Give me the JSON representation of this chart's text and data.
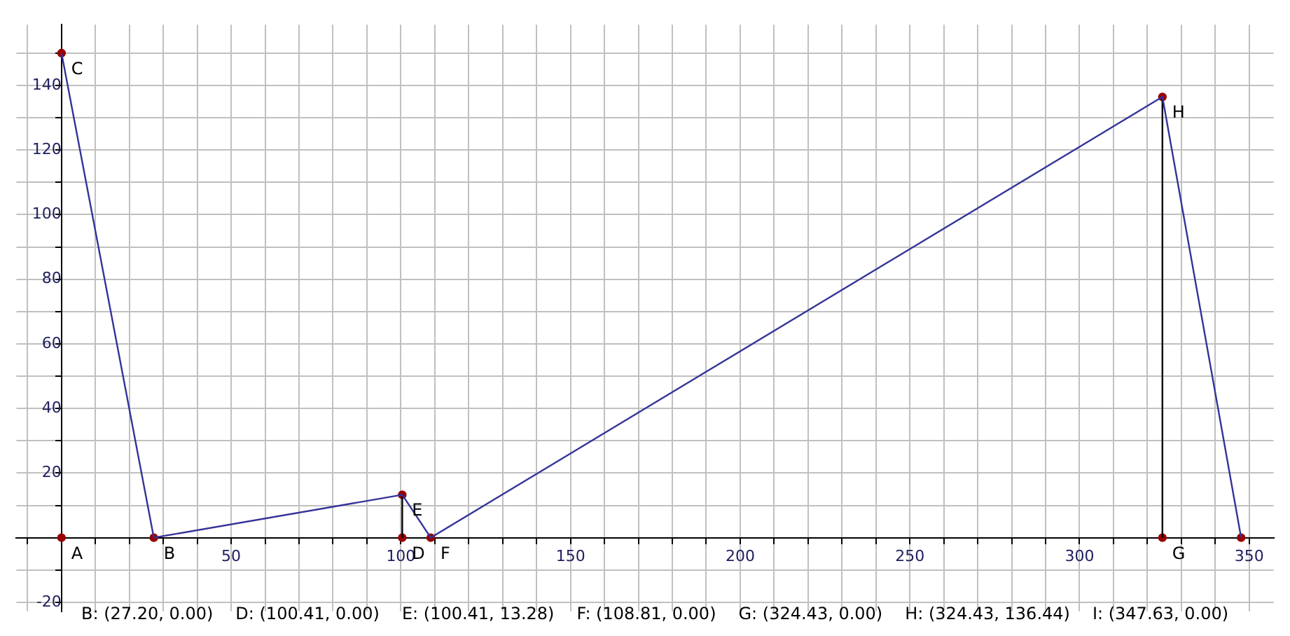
{
  "chart_data": {
    "type": "line",
    "series": [
      {
        "color": "#333399",
        "marker": "none",
        "x": [
          0,
          27.2,
          100.41,
          108.81,
          324.43,
          347.63
        ],
        "values": [
          150,
          0,
          13.28,
          0,
          136.44,
          0
        ]
      },
      {
        "color": "#000000",
        "marker": "none",
        "x": [
          100.41,
          100.41
        ],
        "values": [
          0,
          13.28
        ]
      },
      {
        "color": "#000000",
        "marker": "none",
        "x": [
          324.43,
          324.43
        ],
        "values": [
          0,
          136.44
        ]
      },
      {
        "type": "scatter",
        "color": "#990000",
        "marker": "circle",
        "x": [
          0,
          27.2,
          0,
          100.41,
          100.41,
          108.81,
          324.43,
          324.43,
          347.63
        ],
        "values": [
          0,
          0,
          150,
          0,
          13.28,
          0,
          0,
          136.44,
          0
        ]
      }
    ],
    "xlim": [
      -13.3,
      357.2
    ],
    "ylim": [
      -22.8,
      158.8
    ],
    "xticks": [
      {
        "value": -10,
        "label": null
      },
      {
        "value": 0,
        "label": null
      },
      {
        "value": 10,
        "label": null
      },
      {
        "value": 20,
        "label": null
      },
      {
        "value": 30,
        "label": null
      },
      {
        "value": 40,
        "label": null
      },
      50,
      {
        "value": 60,
        "label": null
      },
      {
        "value": 70,
        "label": null
      },
      {
        "value": 80,
        "label": null
      },
      {
        "value": 90,
        "label": null
      },
      100,
      {
        "value": 110,
        "label": null
      },
      {
        "value": 120,
        "label": null
      },
      {
        "value": 130,
        "label": null
      },
      {
        "value": 140,
        "label": null
      },
      150,
      {
        "value": 160,
        "label": null
      },
      {
        "value": 170,
        "label": null
      },
      {
        "value": 180,
        "label": null
      },
      {
        "value": 190,
        "label": null
      },
      200,
      {
        "value": 210,
        "label": null
      },
      {
        "value": 220,
        "label": null
      },
      {
        "value": 230,
        "label": null
      },
      {
        "value": 240,
        "label": null
      },
      250,
      {
        "value": 260,
        "label": null
      },
      {
        "value": 270,
        "label": null
      },
      {
        "value": 280,
        "label": null
      },
      {
        "value": 290,
        "label": null
      },
      300,
      {
        "value": 310,
        "label": null
      },
      {
        "value": 320,
        "label": null
      },
      {
        "value": 330,
        "label": null
      },
      {
        "value": 340,
        "label": null
      },
      350
    ],
    "yticks": [
      -20,
      {
        "value": -10,
        "label": null
      },
      {
        "value": 0,
        "label": null
      },
      {
        "value": 10,
        "label": null
      },
      20,
      {
        "value": 30,
        "label": null
      },
      40,
      {
        "value": 50,
        "label": null
      },
      60,
      {
        "value": 70,
        "label": null
      },
      80,
      {
        "value": 90,
        "label": null
      },
      100,
      {
        "value": 110,
        "label": null
      },
      120,
      {
        "value": 130,
        "label": null
      },
      140,
      {
        "value": 150,
        "label": null
      }
    ],
    "grid": true,
    "legend": false,
    "annotations": [
      {
        "text": "A",
        "x": 0,
        "y": 0
      },
      {
        "text": "B",
        "x": 27.2,
        "y": 0
      },
      {
        "text": "C",
        "x": 0,
        "y": 150
      },
      {
        "text": "D",
        "x": 100.41,
        "y": 0
      },
      {
        "text": "E",
        "x": 100.41,
        "y": 13.28
      },
      {
        "text": "F",
        "x": 108.81,
        "y": 0
      },
      {
        "text": "G",
        "x": 324.43,
        "y": 0
      },
      {
        "text": "H",
        "x": 324.43,
        "y": 136.44
      },
      "B: (27.20, 0.00)",
      "D: (100.41, 0.00)",
      "E: (100.41, 13.28)",
      "F: (108.81, 0.00)",
      "G: (324.43, 0.00)",
      "H: (324.43, 136.44)",
      "I: (347.63, 0.00)"
    ]
  }
}
